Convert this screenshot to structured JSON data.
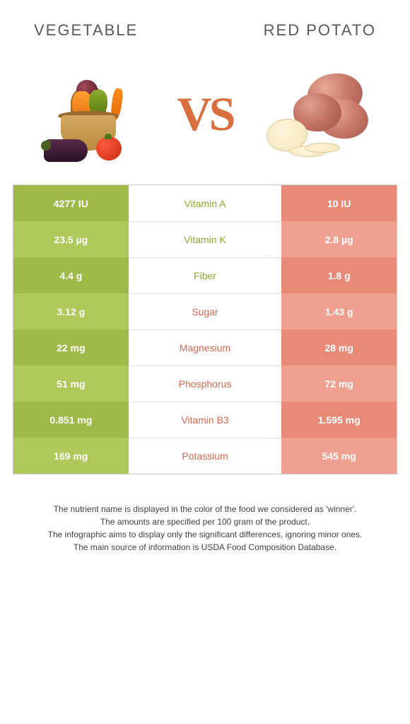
{
  "header": {
    "left_title": "Vegetable",
    "right_title": "Red Potato"
  },
  "vs_label": "VS",
  "colors": {
    "left_dark": "#9fba48",
    "left_light": "#afc85a",
    "right_dark": "#e88a78",
    "right_light": "#f0a090",
    "winner_left_text": "#8aaa30",
    "winner_right_text": "#d86850",
    "header_text": "#585858",
    "vs_text": "#d96f3e"
  },
  "rows": [
    {
      "nutrient": "Vitamin A",
      "left": "4277 IU",
      "right": "10 IU",
      "winner": "left"
    },
    {
      "nutrient": "Vitamin K",
      "left": "23.5 µg",
      "right": "2.8 µg",
      "winner": "left"
    },
    {
      "nutrient": "Fiber",
      "left": "4.4 g",
      "right": "1.8 g",
      "winner": "left"
    },
    {
      "nutrient": "Sugar",
      "left": "3.12 g",
      "right": "1.43 g",
      "winner": "right"
    },
    {
      "nutrient": "Magnesium",
      "left": "22 mg",
      "right": "28 mg",
      "winner": "right"
    },
    {
      "nutrient": "Phosphorus",
      "left": "51 mg",
      "right": "72 mg",
      "winner": "right"
    },
    {
      "nutrient": "Vitamin B3",
      "left": "0.851 mg",
      "right": "1.595 mg",
      "winner": "right"
    },
    {
      "nutrient": "Potassium",
      "left": "169 mg",
      "right": "545 mg",
      "winner": "right"
    }
  ],
  "footer": {
    "line1": "The nutrient name is displayed in the color of the food we considered as 'winner'.",
    "line2": "The amounts are specified per 100 gram of the product.",
    "line3": "The infographic aims to display only the significant differences, ignoring minor ones.",
    "line4": "The main source of information is USDA Food Composition Database."
  }
}
